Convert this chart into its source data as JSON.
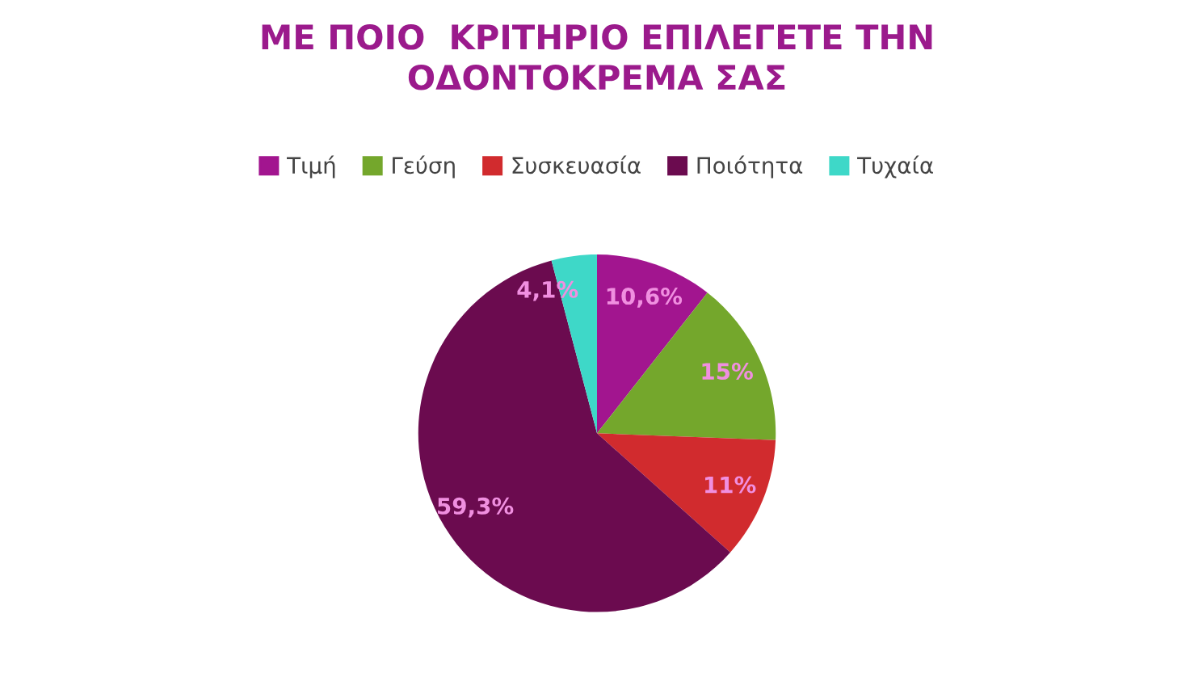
{
  "chart_data": {
    "type": "pie",
    "title": "ΜΕ ΠΟΙΟ  ΚΡΙΤΗΡΙΟ ΕΠΙΛΕΓΕΤΕ ΤΗΝ\nΟΔΟΝΤΟΚΡΕΜΑ ΣΑΣ",
    "categories": [
      "Τιμή",
      "Γεύση",
      "Συσκευασία",
      "Ποιότητα",
      "Τυχαία"
    ],
    "values": [
      10.6,
      15,
      11,
      59.3,
      4.1
    ],
    "value_labels": [
      "10,6%",
      "15%",
      "11%",
      "59,3%",
      "4,1%"
    ],
    "colors": [
      "#a2158f",
      "#74a72c",
      "#d12b2e",
      "#6b0b4f",
      "#3ed8c8"
    ],
    "legend": "top"
  }
}
